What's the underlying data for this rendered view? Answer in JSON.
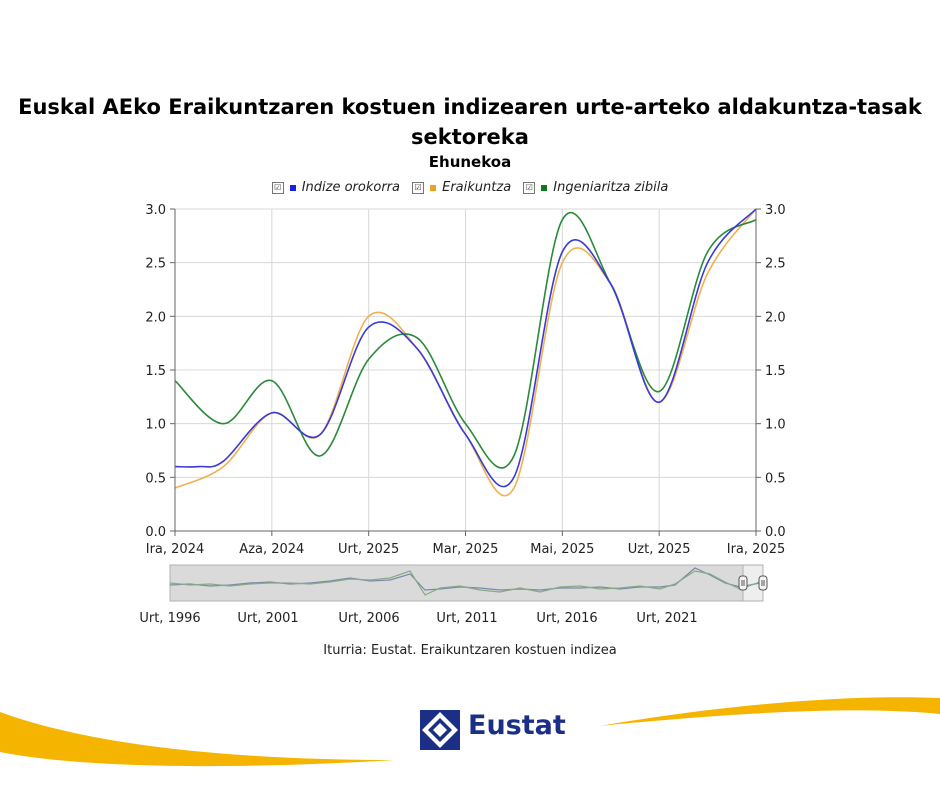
{
  "title": "Euskal AEko Eraikuntzaren kostuen indizearen urte-arteko aldakuntza-tasak sektoreka",
  "subtitle": "Ehunekoa",
  "source": "Iturria: Eustat. Eraikuntzaren kostuen indizea",
  "brand": "Eustat",
  "legend": [
    {
      "label": "Indize orokorra",
      "color": "#1f1fe0",
      "check": "☑"
    },
    {
      "label": "Eraikuntza",
      "color": "#f0a020",
      "check": "☑"
    },
    {
      "label": "Ingeniaritza zibila",
      "color": "#0a7a1a",
      "check": "☑"
    }
  ],
  "chart_data": {
    "type": "line",
    "x_ticks": [
      "Ira, 2024",
      "Aza, 2024",
      "Urt, 2025",
      "Mar, 2025",
      "Mai, 2025",
      "Uzt, 2025",
      "Ira, 2025"
    ],
    "y_ticks": [
      "0.0",
      "0.5",
      "1.0",
      "1.5",
      "2.0",
      "2.5",
      "3.0"
    ],
    "ylim": [
      0,
      3
    ],
    "grid": true,
    "legend_position": "top",
    "series": [
      {
        "name": "Indize orokorra",
        "color": "#3a3ad8",
        "points": [
          [
            0,
            0.6
          ],
          [
            0.25,
            0.6
          ],
          [
            0.5,
            0.65
          ],
          [
            1,
            1.1
          ],
          [
            1.5,
            0.9
          ],
          [
            2,
            1.9
          ],
          [
            2.5,
            1.7
          ],
          [
            3,
            0.9
          ],
          [
            3.5,
            0.5
          ],
          [
            4,
            2.6
          ],
          [
            4.5,
            2.3
          ],
          [
            5,
            1.2
          ],
          [
            5.5,
            2.5
          ],
          [
            6,
            3.0
          ]
        ]
      },
      {
        "name": "Eraikuntza",
        "color": "#f0b050",
        "points": [
          [
            0,
            0.4
          ],
          [
            0.5,
            0.6
          ],
          [
            1,
            1.1
          ],
          [
            1.5,
            0.9
          ],
          [
            2,
            2.0
          ],
          [
            2.5,
            1.7
          ],
          [
            3,
            0.9
          ],
          [
            3.5,
            0.4
          ],
          [
            4,
            2.5
          ],
          [
            4.5,
            2.3
          ],
          [
            5,
            1.2
          ],
          [
            5.5,
            2.4
          ],
          [
            6,
            3.0
          ]
        ]
      },
      {
        "name": "Ingeniaritza zibila",
        "color": "#2a8a3a",
        "points": [
          [
            0,
            1.4
          ],
          [
            0.5,
            1.0
          ],
          [
            1,
            1.4
          ],
          [
            1.5,
            0.7
          ],
          [
            2,
            1.6
          ],
          [
            2.5,
            1.8
          ],
          [
            3,
            1.0
          ],
          [
            3.5,
            0.7
          ],
          [
            4,
            2.9
          ],
          [
            4.5,
            2.3
          ],
          [
            5,
            1.3
          ],
          [
            5.5,
            2.6
          ],
          [
            6,
            2.9
          ]
        ]
      }
    ],
    "navigator": {
      "x_ticks": [
        "Urt, 1996",
        "Urt, 2001",
        "Urt, 2006",
        "Urt, 2011",
        "Urt, 2016",
        "Urt, 2021"
      ]
    }
  }
}
